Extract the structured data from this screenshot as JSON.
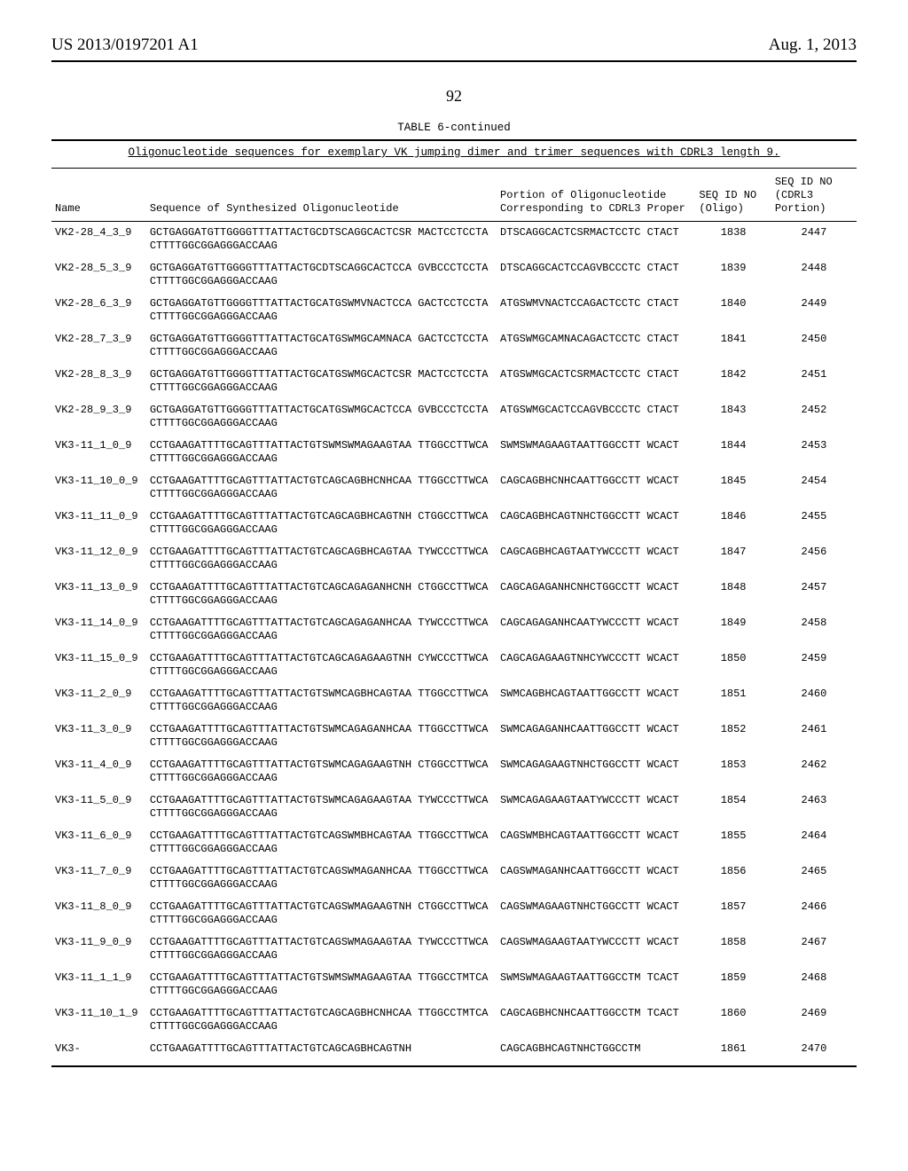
{
  "header": {
    "publication": "US 2013/0197201 A1",
    "date": "Aug. 1, 2013"
  },
  "page_number": "92",
  "table": {
    "title": "TABLE 6-continued",
    "caption": "Oligonucleotide sequences for exemplary VK jumping dimer and trimer sequences with CDRL3 length 9.",
    "columns": {
      "name": "Name",
      "seq": "Sequence of Synthesized Oligonucleotide",
      "portion": "Portion of Oligonucleotide Corresponding to CDRL3 Proper",
      "seqid_oligo": "SEQ ID NO (Oligo)",
      "seqid_cdrl3": "SEQ ID NO (CDRL3 Portion)"
    },
    "rows": [
      {
        "name": "VK2-28_4_3_9",
        "seq": "GCTGAGGATGTTGGGGTTTATTACTGCDTSCAGGCACTCSR MACTCCTCCTACTTTTGGCGGAGGGACCAAG",
        "portion": "DTSCAGGCACTCSRMACTCCTC CTACT",
        "id1": "1838",
        "id2": "2447"
      },
      {
        "name": "VK2-28_5_3_9",
        "seq": "GCTGAGGATGTTGGGGTTTATTACTGCDTSCAGGCACTCCA GVBCCCTCCTACTTTTGGCGGAGGGACCAAG",
        "portion": "DTSCAGGCACTCCAGVBCCCTC CTACT",
        "id1": "1839",
        "id2": "2448"
      },
      {
        "name": "VK2-28_6_3_9",
        "seq": "GCTGAGGATGTTGGGGTTTATTACTGCATGSWMVNACTCCA GACTCCTCCTACTTTTGGCGGAGGGACCAAG",
        "portion": "ATGSWMVNACTCCAGACTCCTC CTACT",
        "id1": "1840",
        "id2": "2449"
      },
      {
        "name": "VK2-28_7_3_9",
        "seq": "GCTGAGGATGTTGGGGTTTATTACTGCATGSWMGCAMNACA GACTCCTCCTACTTTTGGCGGAGGGACCAAG",
        "portion": "ATGSWMGCAMNACAGACTCCTC CTACT",
        "id1": "1841",
        "id2": "2450"
      },
      {
        "name": "VK2-28_8_3_9",
        "seq": "GCTGAGGATGTTGGGGTTTATTACTGCATGSWMGCACTCSR MACTCCTCCTACTTTTGGCGGAGGGACCAAG",
        "portion": "ATGSWMGCACTCSRMACTCCTC CTACT",
        "id1": "1842",
        "id2": "2451"
      },
      {
        "name": "VK2-28_9_3_9",
        "seq": "GCTGAGGATGTTGGGGTTTATTACTGCATGSWMGCACTCCA GVBCCCTCCTACTTTTGGCGGAGGGACCAAG",
        "portion": "ATGSWMGCACTCCAGVBCCCTC CTACT",
        "id1": "1843",
        "id2": "2452"
      },
      {
        "name": "VK3-11_1_0_9",
        "seq": "CCTGAAGATTTTGCAGTTTATTACTGTSWMSWMAGAAGTAA TTGGCCTTWCACTTTTGGCGGAGGGACCAAG",
        "portion": "SWMSWMAGAAGTAATTGGCCTT WCACT",
        "id1": "1844",
        "id2": "2453"
      },
      {
        "name": "VK3-11_10_0_9",
        "seq": "CCTGAAGATTTTGCAGTTTATTACTGTCAGCAGBHCNHCAA TTGGCCTTWCACTTTTGGCGGAGGGACCAAG",
        "portion": "CAGCAGBHCNHCAATTGGCCTT WCACT",
        "id1": "1845",
        "id2": "2454"
      },
      {
        "name": "VK3-11_11_0_9",
        "seq": "CCTGAAGATTTTGCAGTTTATTACTGTCAGCAGBHCAGTNH CTGGCCTTWCACTTTTGGCGGAGGGACCAAG",
        "portion": "CAGCAGBHCAGTNHCTGGCCTT WCACT",
        "id1": "1846",
        "id2": "2455"
      },
      {
        "name": "VK3-11_12_0_9",
        "seq": "CCTGAAGATTTTGCAGTTTATTACTGTCAGCAGBHCAGTAA TYWCCCTTWCACTTTTGGCGGAGGGACCAAG",
        "portion": "CAGCAGBHCAGTAATYWCCCTT WCACT",
        "id1": "1847",
        "id2": "2456"
      },
      {
        "name": "VK3-11_13_0_9",
        "seq": "CCTGAAGATTTTGCAGTTTATTACTGTCAGCAGAGANHCNH CTGGCCTTWCACTTTTGGCGGAGGGACCAAG",
        "portion": "CAGCAGAGANHCNHCTGGCCTT WCACT",
        "id1": "1848",
        "id2": "2457"
      },
      {
        "name": "VK3-11_14_0_9",
        "seq": "CCTGAAGATTTTGCAGTTTATTACTGTCAGCAGAGANHCAA TYWCCCTTWCACTTTTGGCGGAGGGACCAAG",
        "portion": "CAGCAGAGANHCAATYWCCCTT WCACT",
        "id1": "1849",
        "id2": "2458"
      },
      {
        "name": "VK3-11_15_0_9",
        "seq": "CCTGAAGATTTTGCAGTTTATTACTGTCAGCAGAGAAGTNH CYWCCCTTWCACTTTTGGCGGAGGGACCAAG",
        "portion": "CAGCAGAGAAGTNHCYWCCCTT WCACT",
        "id1": "1850",
        "id2": "2459"
      },
      {
        "name": "VK3-11_2_0_9",
        "seq": "CCTGAAGATTTTGCAGTTTATTACTGTSWMCAGBHCAGTAA TTGGCCTTWCACTTTTGGCGGAGGGACCAAG",
        "portion": "SWMCAGBHCAGTAATTGGCCTT WCACT",
        "id1": "1851",
        "id2": "2460"
      },
      {
        "name": "VK3-11_3_0_9",
        "seq": "CCTGAAGATTTTGCAGTTTATTACTGTSWMCAGAGANHCAA TTGGCCTTWCACTTTTGGCGGAGGGACCAAG",
        "portion": "SWMCAGAGANHCAATTGGCCTT WCACT",
        "id1": "1852",
        "id2": "2461"
      },
      {
        "name": "VK3-11_4_0_9",
        "seq": "CCTGAAGATTTTGCAGTTTATTACTGTSWMCAGAGAAGTNH CTGGCCTTWCACTTTTGGCGGAGGGACCAAG",
        "portion": "SWMCAGAGAAGTNHCTGGCCTT WCACT",
        "id1": "1853",
        "id2": "2462"
      },
      {
        "name": "VK3-11_5_0_9",
        "seq": "CCTGAAGATTTTGCAGTTTATTACTGTSWMCAGAGAAGTAA TYWCCCTTWCACTTTTGGCGGAGGGACCAAG",
        "portion": "SWMCAGAGAAGTAATYWCCCTT WCACT",
        "id1": "1854",
        "id2": "2463"
      },
      {
        "name": "VK3-11_6_0_9",
        "seq": "CCTGAAGATTTTGCAGTTTATTACTGTCAGSWMBHCAGTAA TTGGCCTTWCACTTTTGGCGGAGGGACCAAG",
        "portion": "CAGSWMBHCAGTAATTGGCCTT WCACT",
        "id1": "1855",
        "id2": "2464"
      },
      {
        "name": "VK3-11_7_0_9",
        "seq": "CCTGAAGATTTTGCAGTTTATTACTGTCAGSWMAGANHCAA TTGGCCTTWCACTTTTGGCGGAGGGACCAAG",
        "portion": "CAGSWMAGANHCAATTGGCCTT WCACT",
        "id1": "1856",
        "id2": "2465"
      },
      {
        "name": "VK3-11_8_0_9",
        "seq": "CCTGAAGATTTTGCAGTTTATTACTGTCAGSWMAGAAGTNH CTGGCCTTWCACTTTTGGCGGAGGGACCAAG",
        "portion": "CAGSWMAGAAGTNHCTGGCCTT WCACT",
        "id1": "1857",
        "id2": "2466"
      },
      {
        "name": "VK3-11_9_0_9",
        "seq": "CCTGAAGATTTTGCAGTTTATTACTGTCAGSWMAGAAGTAA TYWCCCTTWCACTTTTGGCGGAGGGACCAAG",
        "portion": "CAGSWMAGAAGTAATYWCCCTT WCACT",
        "id1": "1858",
        "id2": "2467"
      },
      {
        "name": "VK3-11_1_1_9",
        "seq": "CCTGAAGATTTTGCAGTTTATTACTGTSWMSWMAGAAGTAA TTGGCCTMTCACTTTTGGCGGAGGGACCAAG",
        "portion": "SWMSWMAGAAGTAATTGGCCTM TCACT",
        "id1": "1859",
        "id2": "2468"
      },
      {
        "name": "VK3-11_10_1_9",
        "seq": "CCTGAAGATTTTGCAGTTTATTACTGTCAGCAGBHCNHCAA TTGGCCTMTCACTTTTGGCGGAGGGACCAAG",
        "portion": "CAGCAGBHCNHCAATTGGCCTM TCACT",
        "id1": "1860",
        "id2": "2469"
      },
      {
        "name": "VK3-",
        "seq": "CCTGAAGATTTTGCAGTTTATTACTGTCAGCAGBHCAGTNH",
        "portion": "CAGCAGBHCAGTNHCTGGCCTM",
        "id1": "1861",
        "id2": "2470"
      }
    ]
  }
}
